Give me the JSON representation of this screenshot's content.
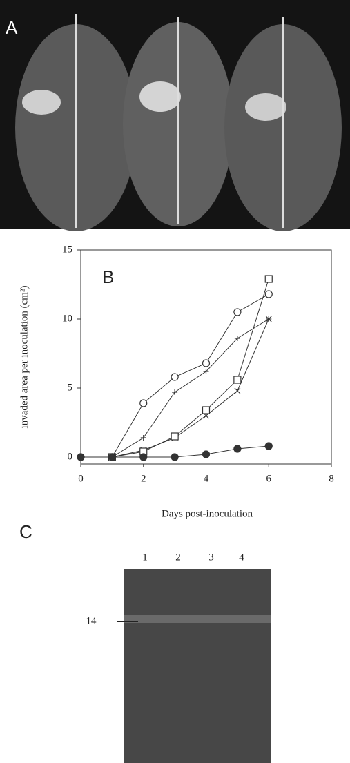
{
  "panel_a": {
    "label": "A"
  },
  "chart_data": {
    "type": "line",
    "annotation": "B",
    "x_label": "Days post-inoculation",
    "y_label": "invaded area per inoculation (cm²)",
    "x": [
      0,
      1,
      2,
      3,
      4,
      5,
      6
    ],
    "xlim": [
      0,
      8
    ],
    "xticks": [
      0,
      2,
      4,
      6,
      8
    ],
    "ylim": [
      -0.5,
      15
    ],
    "yticks": [
      0,
      5,
      10,
      15
    ],
    "color": "#333333",
    "series": [
      {
        "marker": "circle-open",
        "values": [
          null,
          0,
          3.9,
          5.8,
          6.8,
          10.5,
          11.8
        ]
      },
      {
        "marker": "plus",
        "values": [
          null,
          0,
          1.4,
          4.7,
          6.2,
          8.6,
          10.0
        ]
      },
      {
        "marker": "x",
        "values": [
          null,
          0,
          0.5,
          1.4,
          3.0,
          4.8,
          10.0
        ]
      },
      {
        "marker": "square",
        "values": [
          null,
          0,
          0.4,
          1.5,
          3.4,
          5.6,
          12.9
        ]
      },
      {
        "marker": "circle-filled",
        "values": [
          0,
          0,
          0,
          0,
          0.2,
          0.6,
          0.8
        ]
      }
    ]
  },
  "panel_c": {
    "label": "C",
    "lanes": [
      "1",
      "2",
      "3",
      "4"
    ],
    "marker": "14"
  }
}
